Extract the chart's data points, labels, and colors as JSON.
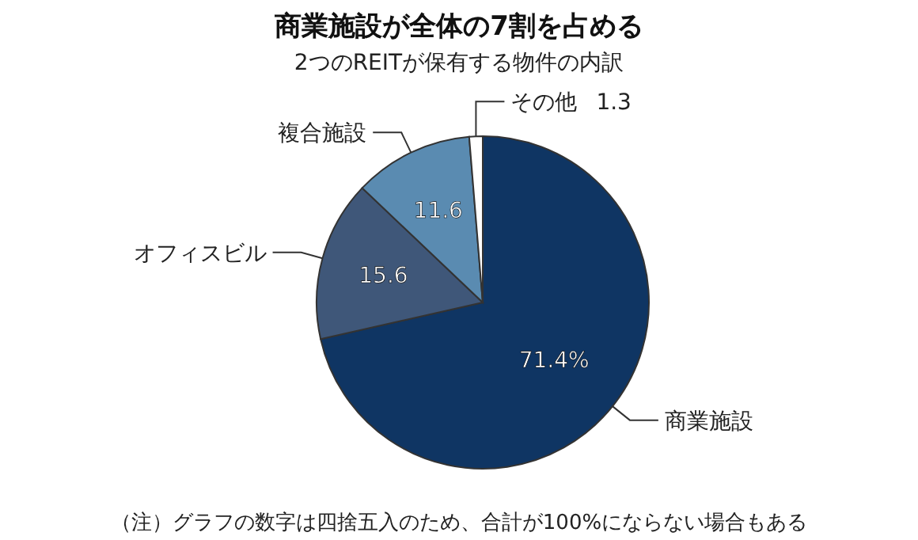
{
  "chart_data": {
    "type": "pie",
    "title": "商業施設が全体の7割を占める",
    "subtitle": "2つのREITが保有する物件の内訳",
    "categories": [
      "商業施設",
      "オフィスビル",
      "複合施設",
      "その他"
    ],
    "values": [
      71.4,
      15.6,
      11.6,
      1.3
    ],
    "value_labels": [
      "71.4%",
      "15.6",
      "11.6",
      "1.3"
    ],
    "colors": [
      "#0f3563",
      "#3f5779",
      "#5a8bb1",
      "#ffffff"
    ],
    "annotations": [
      "（注）グラフの数字は四捨五入のため、合計が100%にならない場合もある"
    ]
  }
}
